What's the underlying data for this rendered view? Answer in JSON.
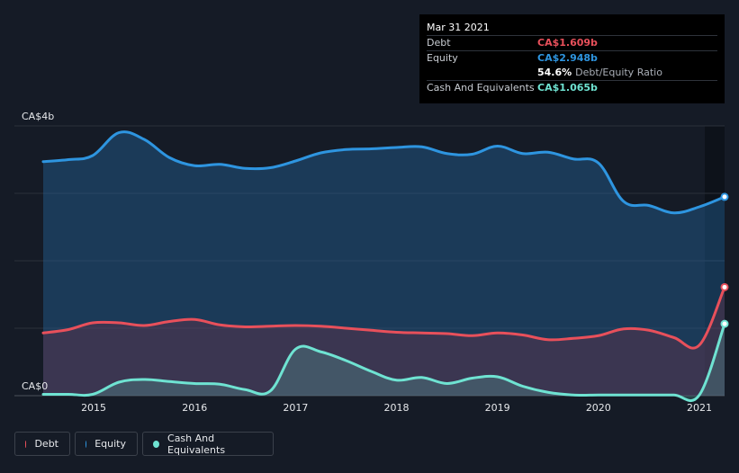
{
  "tooltip": {
    "date": "Mar 31 2021",
    "debt_label": "Debt",
    "debt_value": "CA$1.609b",
    "equity_label": "Equity",
    "equity_value": "CA$2.948b",
    "ratio_value": "54.6%",
    "ratio_label": "Debt/Equity Ratio",
    "cash_label": "Cash And Equivalents",
    "cash_value": "CA$1.065b"
  },
  "legend": {
    "debt": "Debt",
    "equity": "Equity",
    "cash": "Cash And Equivalents"
  },
  "colors": {
    "debt": "#e8505b",
    "equity": "#2e95e0",
    "cash": "#6fe3d2",
    "background": "#151b26"
  },
  "chart_data": {
    "type": "area",
    "y_axis_labels": {
      "top": "CA$4b",
      "bottom": "CA$0"
    },
    "ylim": [
      0,
      4.0
    ],
    "xlim": [
      2014.5,
      2021.25
    ],
    "x_ticks": [
      "2015",
      "2016",
      "2017",
      "2018",
      "2019",
      "2020",
      "2021"
    ],
    "grid": true,
    "legend_position": "bottom-left",
    "series": [
      {
        "name": "Equity",
        "points": [
          [
            2014.5,
            3.47
          ],
          [
            2014.75,
            3.5
          ],
          [
            2014.99,
            3.56
          ],
          [
            2015.25,
            3.9
          ],
          [
            2015.5,
            3.8
          ],
          [
            2015.75,
            3.53
          ],
          [
            2016.0,
            3.41
          ],
          [
            2016.25,
            3.43
          ],
          [
            2016.5,
            3.37
          ],
          [
            2016.75,
            3.38
          ],
          [
            2017.0,
            3.48
          ],
          [
            2017.25,
            3.6
          ],
          [
            2017.5,
            3.65
          ],
          [
            2017.75,
            3.66
          ],
          [
            2018.0,
            3.68
          ],
          [
            2018.25,
            3.69
          ],
          [
            2018.5,
            3.59
          ],
          [
            2018.75,
            3.58
          ],
          [
            2019.0,
            3.7
          ],
          [
            2019.25,
            3.59
          ],
          [
            2019.5,
            3.61
          ],
          [
            2019.75,
            3.51
          ],
          [
            2020.0,
            3.45
          ],
          [
            2020.25,
            2.88
          ],
          [
            2020.5,
            2.82
          ],
          [
            2020.75,
            2.71
          ],
          [
            2021.0,
            2.8
          ],
          [
            2021.25,
            2.948
          ]
        ]
      },
      {
        "name": "Debt",
        "points": [
          [
            2014.5,
            0.93
          ],
          [
            2014.75,
            0.98
          ],
          [
            2014.99,
            1.08
          ],
          [
            2015.25,
            1.08
          ],
          [
            2015.5,
            1.04
          ],
          [
            2015.75,
            1.1
          ],
          [
            2016.0,
            1.13
          ],
          [
            2016.25,
            1.05
          ],
          [
            2016.5,
            1.02
          ],
          [
            2016.75,
            1.03
          ],
          [
            2017.0,
            1.04
          ],
          [
            2017.25,
            1.03
          ],
          [
            2017.5,
            1.0
          ],
          [
            2017.75,
            0.97
          ],
          [
            2018.0,
            0.94
          ],
          [
            2018.25,
            0.93
          ],
          [
            2018.5,
            0.92
          ],
          [
            2018.75,
            0.89
          ],
          [
            2019.0,
            0.93
          ],
          [
            2019.25,
            0.9
          ],
          [
            2019.5,
            0.83
          ],
          [
            2019.75,
            0.85
          ],
          [
            2020.0,
            0.89
          ],
          [
            2020.25,
            0.99
          ],
          [
            2020.5,
            0.97
          ],
          [
            2020.75,
            0.86
          ],
          [
            2021.0,
            0.75
          ],
          [
            2021.25,
            1.609
          ]
        ]
      },
      {
        "name": "Cash And Equivalents",
        "points": [
          [
            2014.5,
            0.02
          ],
          [
            2014.75,
            0.02
          ],
          [
            2014.99,
            0.02
          ],
          [
            2015.25,
            0.2
          ],
          [
            2015.5,
            0.24
          ],
          [
            2015.75,
            0.21
          ],
          [
            2016.0,
            0.18
          ],
          [
            2016.25,
            0.17
          ],
          [
            2016.5,
            0.09
          ],
          [
            2016.75,
            0.07
          ],
          [
            2017.0,
            0.69
          ],
          [
            2017.25,
            0.65
          ],
          [
            2017.5,
            0.52
          ],
          [
            2017.75,
            0.36
          ],
          [
            2018.0,
            0.23
          ],
          [
            2018.25,
            0.27
          ],
          [
            2018.5,
            0.18
          ],
          [
            2018.75,
            0.26
          ],
          [
            2019.0,
            0.28
          ],
          [
            2019.25,
            0.14
          ],
          [
            2019.5,
            0.05
          ],
          [
            2019.75,
            0.01
          ],
          [
            2020.0,
            0.01
          ],
          [
            2020.25,
            0.01
          ],
          [
            2020.5,
            0.01
          ],
          [
            2020.75,
            0.01
          ],
          [
            2021.0,
            0.01
          ],
          [
            2021.25,
            1.065
          ]
        ]
      }
    ]
  }
}
